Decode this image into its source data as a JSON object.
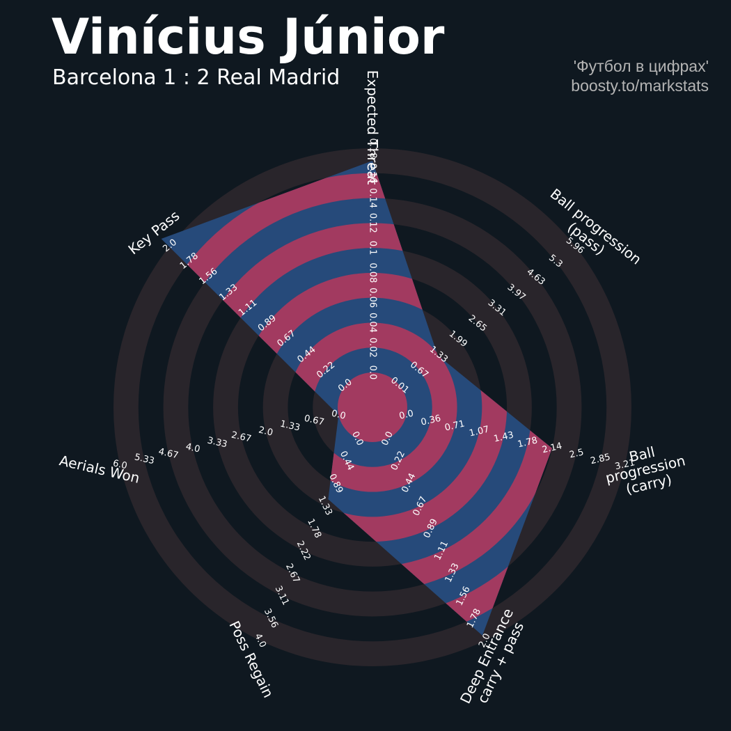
{
  "chart_data": {
    "type": "radar",
    "title": "Vinícius Júnior",
    "subtitle": "Barcelona 1 : 2 Real Madrid",
    "credits": [
      "'Футбол в цифрах'",
      "boosty.to/markstats"
    ],
    "categories": [
      "Expected Threat",
      "Ball progression (pass)",
      "Ball progression (carry)",
      "Deep Entrance\ncarry + pass",
      "Poss Regain",
      "Aerials Won",
      "Key Pass"
    ],
    "axes": [
      {
        "lim": [
          0,
          0.18
        ],
        "ticks": [
          {
            "value": 0,
            "label": "0.0"
          },
          0.02,
          0.04,
          0.06,
          0.08,
          0.1,
          0.12,
          0.14,
          0.16,
          0.18
        ]
      },
      {
        "lim": [
          0.01,
          5.96
        ],
        "ticks": [
          0.01,
          0.67,
          1.33,
          1.99,
          2.65,
          3.31,
          3.97,
          4.63,
          5.3,
          5.96
        ]
      },
      {
        "lim": [
          0,
          3.21
        ],
        "ticks": [
          {
            "value": 0,
            "label": "0.0"
          },
          0.36,
          0.71,
          1.07,
          1.43,
          1.78,
          2.14,
          2.5,
          2.85,
          3.21
        ]
      },
      {
        "lim": [
          0,
          2
        ],
        "ticks": [
          {
            "value": 0,
            "label": "0.0"
          },
          0.22,
          0.44,
          0.67,
          0.89,
          1.11,
          1.33,
          1.56,
          1.78,
          {
            "value": 2,
            "label": "2.0"
          }
        ]
      },
      {
        "lim": [
          0,
          4
        ],
        "ticks": [
          {
            "value": 0,
            "label": "0.0"
          },
          0.44,
          0.89,
          1.33,
          1.78,
          2.22,
          2.67,
          3.11,
          3.56,
          {
            "value": 4,
            "label": "4.0"
          }
        ]
      },
      {
        "lim": [
          0,
          6
        ],
        "ticks": [
          {
            "value": 0,
            "label": "0.0"
          },
          0.67,
          1.33,
          {
            "value": 2,
            "label": "2.0"
          },
          2.67,
          3.33,
          {
            "value": 4,
            "label": "4.0"
          },
          4.67,
          5.33,
          {
            "value": 6,
            "label": "6.0"
          }
        ]
      },
      {
        "lim": [
          0,
          2
        ],
        "ticks": [
          {
            "value": 0,
            "label": "0.0"
          },
          0.22,
          0.44,
          0.67,
          0.89,
          1.11,
          1.33,
          1.56,
          1.78,
          {
            "value": 2,
            "label": "2.0"
          }
        ]
      }
    ],
    "series": [
      {
        "values": [
          0.17,
          1.3,
          2.14,
          1.95,
          1.2,
          0,
          2.1
        ],
        "color": "#264a7a",
        "ring_color": "#a23a60"
      }
    ],
    "background_ring_color": "#29252b"
  }
}
